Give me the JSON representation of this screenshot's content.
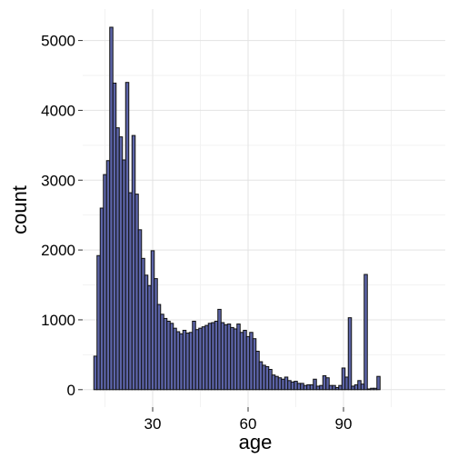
{
  "chart_data": {
    "type": "bar",
    "title": "",
    "xlabel": "age",
    "ylabel": "count",
    "xlim": [
      8,
      122
    ],
    "ylim": [
      -250,
      5450
    ],
    "x_ticks": [
      30,
      60,
      90
    ],
    "y_ticks": [
      0,
      1000,
      2000,
      3000,
      4000,
      5000
    ],
    "grid": true,
    "legend": "none",
    "colors": {
      "bar_fill": "#5c64a8",
      "bar_stroke": "#111111",
      "background": "#ffffff",
      "grid_major": "#e3e3e3",
      "grid_minor": "#f2f2f2"
    },
    "bins": {
      "start": 11.5,
      "width": 1,
      "values": [
        480,
        1920,
        2600,
        3080,
        3280,
        5190,
        4390,
        3750,
        3620,
        3290,
        4400,
        2820,
        3640,
        2800,
        2290,
        1880,
        1640,
        1490,
        1990,
        1590,
        1220,
        1080,
        1020,
        980,
        950,
        880,
        830,
        800,
        850,
        810,
        820,
        980,
        860,
        880,
        900,
        920,
        950,
        960,
        980,
        1150,
        960,
        930,
        940,
        890,
        870,
        940,
        820,
        850,
        760,
        820,
        730,
        550,
        400,
        350,
        330,
        290,
        210,
        190,
        170,
        150,
        180,
        130,
        110,
        120,
        90,
        90,
        60,
        70,
        70,
        150,
        50,
        60,
        200,
        170,
        60,
        60,
        30,
        60,
        310,
        180,
        1030,
        50,
        70,
        130,
        80,
        1650,
        10,
        20,
        20,
        190
      ]
    }
  }
}
